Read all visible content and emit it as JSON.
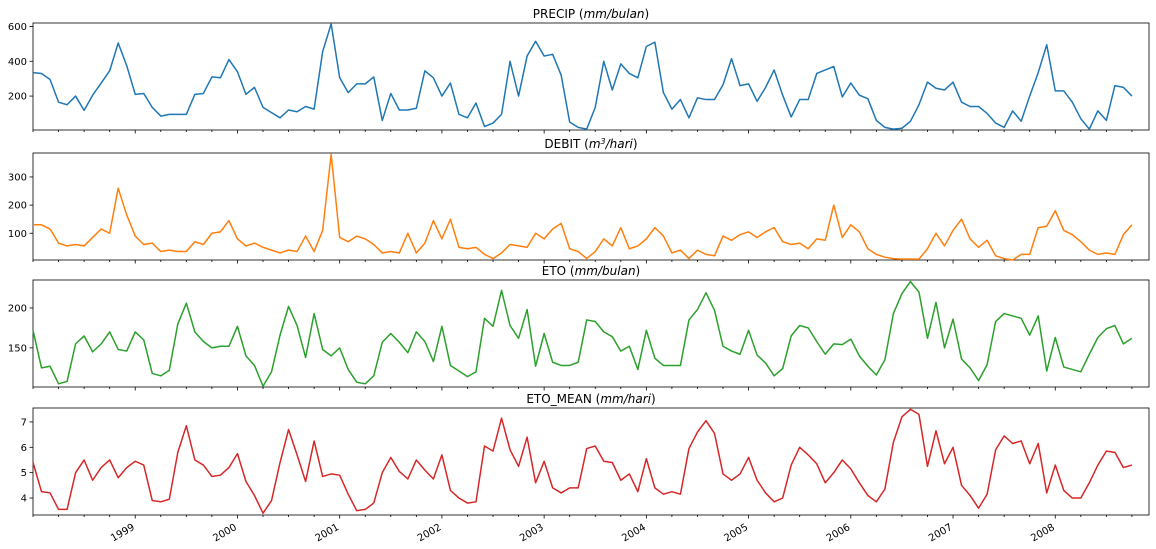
{
  "chart_data": [
    {
      "type": "line",
      "title": "PRECIP",
      "title_unit": "mm/bulan",
      "color": "#1f77b4",
      "xlim": [
        1998.0,
        2008.917
      ],
      "ylim": [
        5,
        620
      ],
      "yticks": [
        200,
        400,
        600
      ],
      "x_ticks": [
        "1999",
        "2000",
        "2001",
        "2002",
        "2003",
        "2004",
        "2005",
        "2006",
        "2007",
        "2008"
      ],
      "grid": false,
      "x_start": "1998-01",
      "x_step": "monthly",
      "values": [
        335,
        330,
        295,
        165,
        150,
        200,
        118,
        205,
        275,
        345,
        505,
        375,
        210,
        215,
        135,
        85,
        95,
        95,
        95,
        210,
        215,
        310,
        305,
        410,
        340,
        210,
        250,
        135,
        105,
        75,
        120,
        110,
        140,
        125,
        455,
        615,
        305,
        220,
        270,
        270,
        310,
        60,
        215,
        120,
        120,
        130,
        345,
        305,
        200,
        275,
        95,
        75,
        160,
        25,
        45,
        95,
        400,
        200,
        430,
        515,
        430,
        440,
        320,
        50,
        20,
        10,
        135,
        400,
        235,
        385,
        330,
        305,
        485,
        510,
        220,
        125,
        180,
        75,
        190,
        180,
        180,
        265,
        415,
        260,
        270,
        170,
        250,
        350,
        205,
        80,
        180,
        180,
        330,
        350,
        370,
        195,
        275,
        205,
        185,
        60,
        20,
        10,
        15,
        55,
        150,
        280,
        245,
        235,
        280,
        165,
        140,
        140,
        100,
        45,
        20,
        115,
        55,
        200,
        335,
        495,
        230,
        230,
        165,
        70,
        10,
        115,
        60,
        260,
        250,
        200
      ]
    },
    {
      "type": "line",
      "title": "DEBIT",
      "title_unit": "m^3/hari",
      "color": "#ff7f0e",
      "xlim": [
        1998.0,
        2008.917
      ],
      "ylim": [
        5,
        385
      ],
      "yticks": [
        100,
        200,
        300
      ],
      "x_ticks": [
        "1999",
        "2000",
        "2001",
        "2002",
        "2003",
        "2004",
        "2005",
        "2006",
        "2007",
        "2008"
      ],
      "grid": false,
      "x_start": "1998-01",
      "x_step": "monthly",
      "values": [
        130,
        130,
        115,
        65,
        55,
        60,
        55,
        85,
        115,
        100,
        260,
        165,
        90,
        60,
        65,
        35,
        40,
        35,
        35,
        70,
        60,
        100,
        105,
        145,
        80,
        55,
        65,
        50,
        40,
        30,
        40,
        35,
        90,
        35,
        110,
        380,
        85,
        70,
        90,
        80,
        60,
        30,
        35,
        30,
        100,
        30,
        65,
        145,
        80,
        150,
        50,
        45,
        50,
        25,
        10,
        30,
        60,
        55,
        50,
        100,
        80,
        115,
        135,
        45,
        35,
        10,
        35,
        80,
        55,
        120,
        45,
        55,
        80,
        120,
        90,
        30,
        40,
        10,
        40,
        25,
        20,
        90,
        75,
        95,
        105,
        85,
        105,
        120,
        70,
        60,
        65,
        45,
        80,
        75,
        200,
        85,
        130,
        105,
        45,
        25,
        15,
        10,
        8,
        8,
        8,
        45,
        100,
        55,
        110,
        150,
        80,
        50,
        75,
        20,
        10,
        5,
        25,
        25,
        120,
        125,
        180,
        110,
        95,
        70,
        40,
        25,
        30,
        25,
        95,
        130
      ]
    },
    {
      "type": "line",
      "title": "ETO",
      "title_unit": "mm/bulan",
      "color": "#2ca02c",
      "xlim": [
        1998.0,
        2008.917
      ],
      "ylim": [
        101,
        235
      ],
      "yticks": [
        150,
        200
      ],
      "x_ticks": [
        "1999",
        "2000",
        "2001",
        "2002",
        "2003",
        "2004",
        "2005",
        "2006",
        "2007",
        "2008"
      ],
      "grid": false,
      "x_start": "1998-01",
      "x_step": "monthly",
      "values": [
        172,
        125,
        127,
        105,
        108,
        155,
        165,
        145,
        155,
        170,
        148,
        146,
        170,
        160,
        118,
        115,
        122,
        180,
        206,
        170,
        158,
        150,
        152,
        152,
        177,
        140,
        128,
        102,
        120,
        166,
        202,
        178,
        138,
        193,
        148,
        140,
        150,
        123,
        107,
        105,
        115,
        157,
        168,
        157,
        144,
        170,
        158,
        133,
        177,
        128,
        121,
        114,
        120,
        187,
        177,
        222,
        178,
        162,
        198,
        127,
        168,
        132,
        128,
        128,
        132,
        185,
        183,
        170,
        164,
        146,
        152,
        123,
        172,
        137,
        128,
        128,
        128,
        185,
        198,
        219,
        197,
        152,
        146,
        142,
        172,
        141,
        131,
        115,
        124,
        165,
        178,
        175,
        158,
        142,
        155,
        154,
        161,
        140,
        127,
        116,
        135,
        193,
        218,
        233,
        220,
        162,
        207,
        150,
        186,
        136,
        125,
        109,
        129,
        183,
        193,
        190,
        187,
        166,
        190,
        121,
        163,
        126,
        123,
        120,
        142,
        163,
        174,
        178,
        155,
        162
      ]
    },
    {
      "type": "line",
      "title": "ETO_MEAN",
      "title_unit": "mm/hari",
      "color": "#d62728",
      "xlim": [
        1998.0,
        2008.917
      ],
      "ylim": [
        3.33,
        7.55
      ],
      "yticks": [
        4,
        5,
        6,
        7
      ],
      "x_ticks": [
        "1999",
        "2000",
        "2001",
        "2002",
        "2003",
        "2004",
        "2005",
        "2006",
        "2007",
        "2008"
      ],
      "grid": false,
      "x_start": "1998-01",
      "x_step": "monthly",
      "values": [
        5.4,
        4.25,
        4.2,
        3.55,
        3.55,
        5.0,
        5.5,
        4.7,
        5.2,
        5.5,
        4.8,
        5.2,
        5.45,
        5.3,
        3.9,
        3.85,
        3.95,
        5.8,
        6.85,
        5.5,
        5.3,
        4.85,
        4.9,
        5.2,
        5.75,
        4.65,
        4.1,
        3.4,
        3.9,
        5.4,
        6.7,
        5.7,
        4.65,
        6.25,
        4.85,
        4.95,
        4.9,
        4.15,
        3.5,
        3.55,
        3.8,
        5.0,
        5.6,
        5.05,
        4.75,
        5.5,
        5.1,
        4.75,
        5.7,
        4.3,
        4.0,
        3.8,
        3.85,
        6.05,
        5.85,
        7.15,
        5.9,
        5.25,
        6.4,
        4.6,
        5.45,
        4.4,
        4.2,
        4.4,
        4.4,
        5.95,
        6.05,
        5.45,
        5.4,
        4.7,
        4.95,
        4.25,
        5.55,
        4.4,
        4.15,
        4.25,
        4.15,
        5.95,
        6.6,
        7.05,
        6.55,
        4.95,
        4.7,
        4.95,
        5.6,
        4.7,
        4.2,
        3.85,
        4.0,
        5.3,
        6.0,
        5.7,
        5.35,
        4.6,
        5.0,
        5.5,
        5.15,
        4.6,
        4.1,
        3.85,
        4.35,
        6.2,
        7.2,
        7.5,
        7.3,
        5.25,
        6.65,
        5.35,
        6.0,
        4.5,
        4.1,
        3.6,
        4.15,
        5.9,
        6.45,
        6.15,
        6.25,
        5.35,
        6.15,
        4.2,
        5.3,
        4.3,
        4.0,
        4.0,
        4.6,
        5.3,
        5.85,
        5.8,
        5.2,
        5.3
      ]
    }
  ]
}
